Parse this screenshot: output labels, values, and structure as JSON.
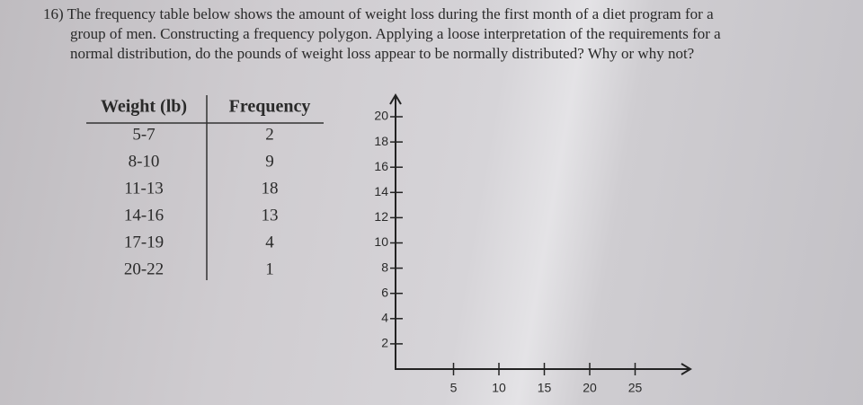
{
  "question": {
    "lines": [
      "16) The frequency table below shows the amount of weight loss during the first month of a diet program for a",
      "group of men. Constructing a frequency polygon. Applying a loose interpretation of the requirements for a",
      "normal distribution, do the pounds of weight loss appear to be normally distributed? Why or why not?"
    ]
  },
  "table": {
    "header": [
      "Weight (lb)",
      "Frequency"
    ],
    "rows": [
      [
        "5-7",
        2
      ],
      [
        "8-10",
        9
      ],
      [
        "11-13",
        18
      ],
      [
        "14-16",
        13
      ],
      [
        "17-19",
        4
      ],
      [
        "20-22",
        1
      ]
    ]
  },
  "graph": {
    "yticks": [
      2,
      4,
      6,
      8,
      10,
      12,
      14,
      16,
      18,
      20
    ],
    "xticks": [
      5,
      10,
      15,
      20,
      25
    ]
  }
}
